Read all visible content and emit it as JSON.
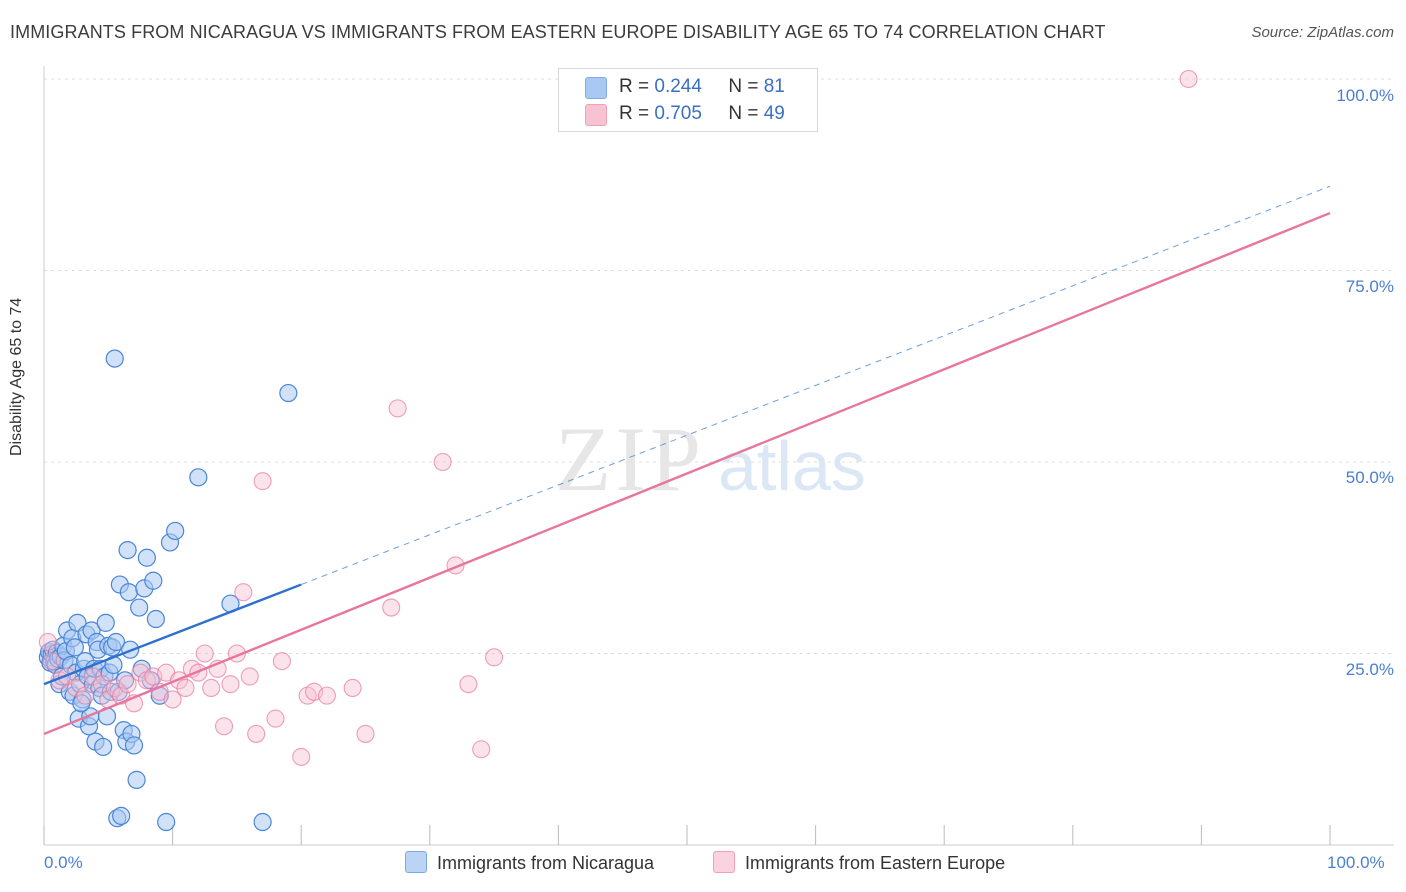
{
  "header": {
    "title": "IMMIGRANTS FROM NICARAGUA VS IMMIGRANTS FROM EASTERN EUROPE DISABILITY AGE 65 TO 74 CORRELATION CHART",
    "source": "Source: ZipAtlas.com"
  },
  "watermark": {
    "zip": "ZIP",
    "atlas": "atlas"
  },
  "stats": {
    "r_label": "R =",
    "n_label": "N =",
    "rows": [
      {
        "r": "0.244",
        "n": "81",
        "color": "#7eaae8"
      },
      {
        "r": "0.705",
        "n": "49",
        "color": "#f2a0b8"
      }
    ]
  },
  "colors": {
    "blue": "#4a86d8",
    "blue_fill": "#a9c8f2",
    "pink": "#e8769c",
    "pink_fill": "#f7c2d2",
    "axis_text": "#4a7fcf",
    "grid": "#dddddd"
  },
  "chart_data": {
    "type": "scatter",
    "title": "IMMIGRANTS FROM NICARAGUA VS IMMIGRANTS FROM EASTERN EUROPE DISABILITY AGE 65 TO 74 CORRELATION CHART",
    "xlabel": "",
    "ylabel": "Disability Age 65 to 74",
    "xlim": [
      0,
      100
    ],
    "ylim": [
      0,
      100
    ],
    "x_tick_labels": [
      "0.0%",
      "100.0%"
    ],
    "y_ticks": [
      25,
      50,
      75,
      100
    ],
    "y_tick_labels": [
      "25.0%",
      "50.0%",
      "75.0%",
      "100.0%"
    ],
    "legend_position": "bottom",
    "series": [
      {
        "name": "Immigrants from Nicaragua",
        "r": 0.244,
        "n": 81,
        "trend": {
          "x0": 0,
          "y0": 21.0,
          "x1": 20,
          "y1": 34.0,
          "extend_to_x": 100,
          "extend_to_y": 86.0
        },
        "points": [
          [
            0.3,
            24.5
          ],
          [
            0.4,
            25.2
          ],
          [
            0.5,
            23.8
          ],
          [
            0.6,
            24.9
          ],
          [
            0.7,
            25.5
          ],
          [
            0.8,
            24.0
          ],
          [
            0.9,
            23.5
          ],
          [
            1.0,
            25.1
          ],
          [
            1.1,
            24.3
          ],
          [
            1.2,
            21.0
          ],
          [
            1.3,
            24.6
          ],
          [
            1.4,
            22.0
          ],
          [
            1.5,
            26.0
          ],
          [
            1.6,
            24.1
          ],
          [
            1.7,
            25.3
          ],
          [
            1.8,
            28.0
          ],
          [
            2.0,
            20.0
          ],
          [
            2.1,
            23.5
          ],
          [
            2.2,
            27.0
          ],
          [
            2.3,
            19.5
          ],
          [
            2.4,
            25.8
          ],
          [
            2.5,
            22.5
          ],
          [
            2.6,
            29.0
          ],
          [
            2.7,
            16.5
          ],
          [
            2.8,
            21.0
          ],
          [
            3.0,
            19.0
          ],
          [
            3.1,
            23.0
          ],
          [
            3.2,
            24.0
          ],
          [
            3.3,
            27.5
          ],
          [
            3.4,
            22.0
          ],
          [
            3.5,
            15.5
          ],
          [
            3.6,
            16.8
          ],
          [
            3.7,
            28.0
          ],
          [
            3.8,
            21.0
          ],
          [
            3.9,
            23.0
          ],
          [
            4.0,
            13.5
          ],
          [
            4.1,
            26.5
          ],
          [
            4.2,
            25.5
          ],
          [
            4.3,
            20.5
          ],
          [
            4.4,
            23.0
          ],
          [
            4.5,
            19.5
          ],
          [
            4.6,
            12.8
          ],
          [
            4.7,
            22.0
          ],
          [
            4.8,
            29.0
          ],
          [
            4.9,
            16.8
          ],
          [
            5.0,
            26.0
          ],
          [
            5.1,
            22.5
          ],
          [
            5.2,
            20.0
          ],
          [
            5.3,
            25.8
          ],
          [
            5.4,
            23.5
          ],
          [
            5.5,
            63.5
          ],
          [
            5.6,
            26.5
          ],
          [
            5.7,
            3.5
          ],
          [
            5.8,
            20.0
          ],
          [
            5.9,
            34.0
          ],
          [
            6.0,
            3.8
          ],
          [
            6.2,
            15.0
          ],
          [
            6.3,
            21.5
          ],
          [
            6.4,
            13.5
          ],
          [
            6.5,
            38.5
          ],
          [
            6.6,
            33.0
          ],
          [
            6.7,
            25.5
          ],
          [
            6.8,
            14.5
          ],
          [
            7.0,
            13.0
          ],
          [
            7.2,
            8.5
          ],
          [
            7.4,
            31.0
          ],
          [
            7.6,
            23.0
          ],
          [
            7.8,
            33.5
          ],
          [
            8.0,
            37.5
          ],
          [
            8.3,
            21.5
          ],
          [
            8.5,
            34.5
          ],
          [
            8.7,
            29.5
          ],
          [
            9.0,
            19.5
          ],
          [
            9.5,
            3.0
          ],
          [
            9.8,
            39.5
          ],
          [
            10.2,
            41.0
          ],
          [
            12.0,
            48.0
          ],
          [
            14.5,
            31.5
          ],
          [
            17.0,
            3.0
          ],
          [
            19.0,
            59.0
          ],
          [
            2.9,
            18.5
          ]
        ]
      },
      {
        "name": "Immigrants from Eastern Europe",
        "r": 0.705,
        "n": 49,
        "trend": {
          "x0": 0,
          "y0": 14.5,
          "x1": 100,
          "y1": 82.5
        },
        "points": [
          [
            0.3,
            26.5
          ],
          [
            0.6,
            24.0
          ],
          [
            1.2,
            21.5
          ],
          [
            1.8,
            22.0
          ],
          [
            2.5,
            20.5
          ],
          [
            3.2,
            19.5
          ],
          [
            3.8,
            22.0
          ],
          [
            4.5,
            21.0
          ],
          [
            5.0,
            19.0
          ],
          [
            5.5,
            20.5
          ],
          [
            6.0,
            19.5
          ],
          [
            6.5,
            21.0
          ],
          [
            7.0,
            18.5
          ],
          [
            7.5,
            22.5
          ],
          [
            8.0,
            21.5
          ],
          [
            8.5,
            22.0
          ],
          [
            9.0,
            20.0
          ],
          [
            9.5,
            22.5
          ],
          [
            10.0,
            19.0
          ],
          [
            10.5,
            21.5
          ],
          [
            11.0,
            20.5
          ],
          [
            11.5,
            23.0
          ],
          [
            12.0,
            22.5
          ],
          [
            12.5,
            25.0
          ],
          [
            13.0,
            20.5
          ],
          [
            13.5,
            23.0
          ],
          [
            14.0,
            15.5
          ],
          [
            14.5,
            21.0
          ],
          [
            15.0,
            25.0
          ],
          [
            15.5,
            33.0
          ],
          [
            16.0,
            22.0
          ],
          [
            16.5,
            14.5
          ],
          [
            17.0,
            47.5
          ],
          [
            18.0,
            16.5
          ],
          [
            18.5,
            24.0
          ],
          [
            20.0,
            11.5
          ],
          [
            20.5,
            19.5
          ],
          [
            21.0,
            20.0
          ],
          [
            22.0,
            19.5
          ],
          [
            24.0,
            20.5
          ],
          [
            25.0,
            14.5
          ],
          [
            27.0,
            31.0
          ],
          [
            27.5,
            57.0
          ],
          [
            31.0,
            50.0
          ],
          [
            32.0,
            36.5
          ],
          [
            33.0,
            21.0
          ],
          [
            34.0,
            12.5
          ],
          [
            35.0,
            24.5
          ],
          [
            89.0,
            100.0
          ]
        ]
      }
    ]
  },
  "legend": {
    "items": [
      {
        "label": "Immigrants from Nicaragua"
      },
      {
        "label": "Immigrants from Eastern Europe"
      }
    ]
  }
}
